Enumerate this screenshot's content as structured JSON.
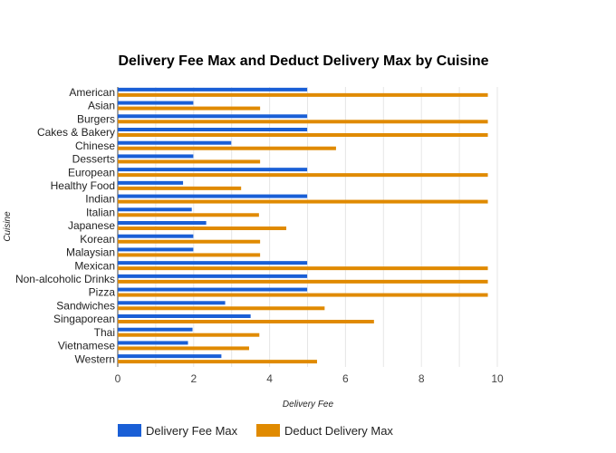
{
  "chart_data": {
    "type": "bar",
    "orientation": "horizontal",
    "title": "Delivery Fee Max and Deduct Delivery Max by Cuisine",
    "xlabel": "Delivery Fee",
    "ylabel": "Cuisine",
    "xlim": [
      0,
      10
    ],
    "xticks": [
      "0",
      "2",
      "4",
      "6",
      "8",
      "10"
    ],
    "grid": true,
    "legend_position": "bottom-left",
    "categories": [
      "American",
      "Asian",
      "Burgers",
      "Cakes & Bakery",
      "Chinese",
      "Desserts",
      "European",
      "Healthy Food",
      "Indian",
      "Italian",
      "Japanese",
      "Korean",
      "Malaysian",
      "Mexican",
      "Non-alcoholic Drinks",
      "Pizza",
      "Sandwiches",
      "Singaporean",
      "Thai",
      "Vietnamese",
      "Western"
    ],
    "series": [
      {
        "name": "Delivery Fee Max",
        "color": "#1a5fd6",
        "values": [
          4.99,
          1.99,
          4.99,
          4.99,
          2.99,
          1.99,
          4.99,
          1.72,
          4.99,
          1.95,
          2.33,
          1.99,
          1.99,
          4.99,
          4.99,
          4.99,
          2.83,
          3.5,
          1.97,
          1.85,
          2.73
        ]
      },
      {
        "name": "Deduct Delivery Max",
        "color": "#e08a00",
        "values": [
          9.75,
          3.75,
          9.75,
          9.75,
          5.75,
          3.75,
          9.75,
          3.25,
          9.75,
          3.72,
          4.44,
          3.75,
          3.75,
          9.75,
          9.75,
          9.75,
          5.45,
          6.75,
          3.73,
          3.46,
          5.25
        ]
      }
    ]
  }
}
